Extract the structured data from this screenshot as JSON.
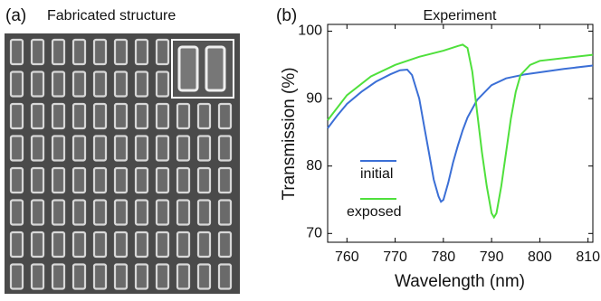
{
  "panel_a": {
    "label": "(a)",
    "title": "Fabricated structure"
  },
  "chart_data": {
    "type": "line",
    "panel_label": "(b)",
    "title": "Experiment",
    "x_label": "Wavelength (nm)",
    "y_label": "Transmission (%)",
    "xlim": [
      756,
      811
    ],
    "ylim": [
      68.7,
      101
    ],
    "xticks": [
      760,
      770,
      780,
      790,
      800,
      810
    ],
    "yticks": [
      70,
      80,
      90,
      100
    ],
    "series": [
      {
        "name": "initial",
        "color": "#3b6fd6",
        "x": [
          756,
          758,
          760,
          763,
          766,
          769,
          771,
          772.5,
          773.5,
          775,
          776,
          777,
          778,
          779,
          779.5,
          780,
          781,
          782,
          783,
          784,
          785,
          787,
          790,
          793,
          797,
          800,
          805,
          811
        ],
        "values": [
          85.6,
          87.5,
          89.2,
          91.0,
          92.5,
          93.6,
          94.2,
          94.3,
          93.5,
          90,
          86,
          82,
          78,
          75.5,
          74.7,
          75,
          77.5,
          80.5,
          83,
          85.3,
          87.2,
          89.8,
          92,
          93,
          93.6,
          93.9,
          94.4,
          94.9
        ]
      },
      {
        "name": "exposed",
        "color": "#4fe03c",
        "x": [
          756,
          760,
          765,
          770,
          775,
          780,
          783,
          784,
          785,
          786,
          787,
          788,
          789,
          790,
          790.5,
          791,
          792,
          793,
          794,
          795,
          796,
          798,
          800,
          805,
          811
        ],
        "values": [
          86.8,
          90.5,
          93.3,
          95.0,
          96.2,
          97.1,
          97.8,
          98.0,
          97.5,
          94,
          88,
          82,
          77,
          73,
          72.4,
          73,
          77,
          82,
          87,
          91,
          93.5,
          95,
          95.6,
          96.0,
          96.5
        ]
      }
    ]
  }
}
